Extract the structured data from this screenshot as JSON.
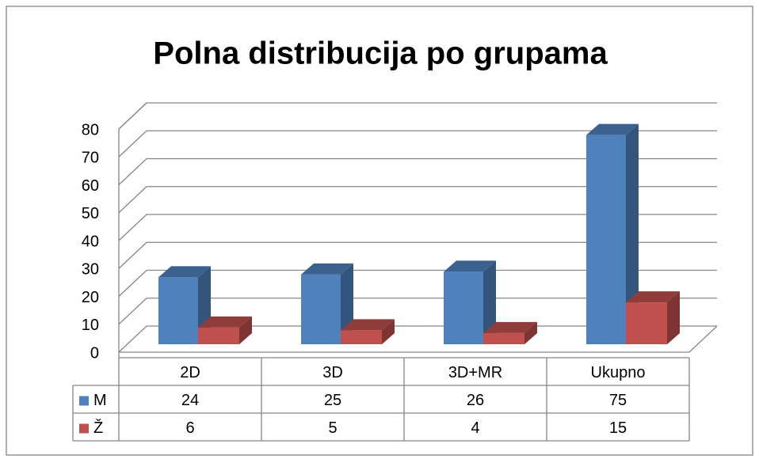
{
  "chart_data": {
    "type": "bar3d",
    "title": "Polna distribucija po  grupama",
    "categories": [
      "2D",
      "3D",
      "3D+MR",
      "Ukupno"
    ],
    "series": [
      {
        "name": "M",
        "color": "#4f81bd",
        "values": [
          24,
          25,
          26,
          75
        ]
      },
      {
        "name": "Ž",
        "color": "#c0504d",
        "values": [
          6,
          5,
          4,
          15
        ]
      }
    ],
    "ylim": [
      0,
      80
    ],
    "yticks": [
      0,
      10,
      20,
      30,
      40,
      50,
      60,
      70,
      80
    ],
    "grid": true,
    "data_table": true
  }
}
